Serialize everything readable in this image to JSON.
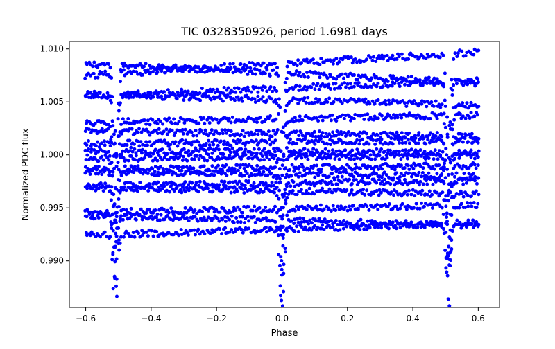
{
  "chart_data": {
    "type": "scatter",
    "title": "TIC 0328350926, period 1.6981 days",
    "xlabel": "Phase",
    "ylabel": "Normalized PDC flux",
    "xlim": [
      -0.65,
      0.665
    ],
    "ylim": [
      0.9856,
      1.0107
    ],
    "xticks": [
      -0.6,
      -0.4,
      -0.2,
      0.0,
      0.2,
      0.4,
      0.6
    ],
    "xtick_labels": [
      "−0.6",
      "−0.4",
      "−0.2",
      "0.0",
      "0.2",
      "0.4",
      "0.6"
    ],
    "yticks": [
      0.99,
      0.995,
      1.0,
      1.005,
      1.01
    ],
    "ytick_labels": [
      "0.990",
      "0.995",
      "1.000",
      "1.005",
      "1.010"
    ],
    "grid": false,
    "marker_color": "#0000ff",
    "series": [
      {
        "x_range": [
          -0.6,
          0.6
        ],
        "phase_step": 0.005,
        "band_levels": [
          1.0086,
          1.0077,
          1.0063,
          1.0052,
          1.0034,
          1.002,
          1.0012,
          1.0003,
          0.9998,
          0.9988,
          0.9982,
          0.9973,
          0.9966,
          0.9949,
          0.9938,
          0.993
        ],
        "band_slopes": [
          0.0018,
          -0.0015,
          0.0012,
          -0.0009,
          0.0006,
          -0.0004,
          0.0003,
          -0.0002,
          0.0002,
          0.0003,
          -0.0004,
          0.0004,
          -0.0005,
          0.0006,
          -0.0008,
          0.001
        ],
        "eclipse_centers": [
          -0.509,
          0.0,
          0.509
        ],
        "eclipse_depth": 0.0092,
        "eclipse_width": 0.009
      }
    ]
  }
}
